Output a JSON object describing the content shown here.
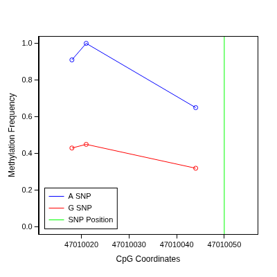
{
  "chart_data": {
    "type": "line",
    "x_label": "CpG Coordinates",
    "y_label": "Methylation Frequency",
    "series": [
      {
        "name": "A SNP",
        "color": "#0000ff",
        "marker": "open_circle",
        "line_style": "solid",
        "x": [
          47010018,
          47010021,
          47010044
        ],
        "values": [
          0.91,
          1.0,
          0.65
        ]
      },
      {
        "name": "G SNP",
        "color": "#ff0000",
        "marker": "open_circle",
        "line_style": "solid",
        "x": [
          47010018,
          47010021,
          47010044
        ],
        "values": [
          0.43,
          0.45,
          0.32
        ]
      },
      {
        "name": "SNP Position",
        "color": "#00ff00",
        "marker": "none",
        "line_style": "solid",
        "x": [
          47010050,
          47010050
        ],
        "values": [
          -0.04,
          1.04
        ]
      }
    ],
    "xlim": [
      47010011,
      47010057
    ],
    "xticks": [
      47010020,
      47010030,
      47010040,
      47010050
    ],
    "ylim": [
      -0.04,
      1.04
    ],
    "yticks": [
      {
        "value": 0,
        "label": "0.0"
      },
      0.2,
      0.4,
      0.6,
      0.8,
      {
        "value": 1,
        "label": "1.0"
      }
    ],
    "grid": false,
    "legend": "bottom left"
  }
}
